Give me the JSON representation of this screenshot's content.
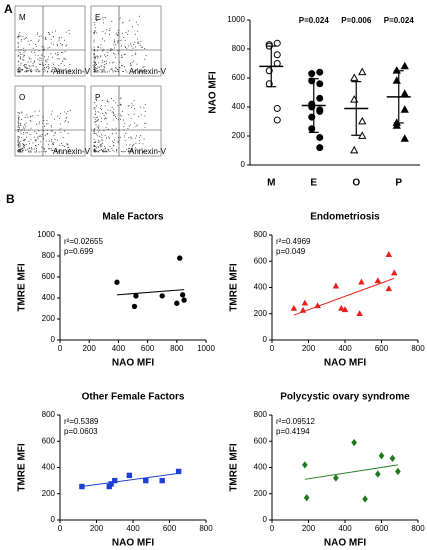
{
  "panel_labels": [
    "A",
    "B"
  ],
  "flow_panels": {
    "labels": [
      "M",
      "E",
      "O",
      "P"
    ],
    "axis_label": "Annexin-V"
  },
  "chart_data": [
    {
      "type": "dot",
      "ylabel": "NAO MFI",
      "categories": [
        "M",
        "E",
        "O",
        "P"
      ],
      "markers": [
        "circle-open",
        "circle",
        "triangle-open",
        "triangle"
      ],
      "groups": [
        [
          840,
          830,
          820,
          760,
          700,
          650,
          560,
          390,
          310
        ],
        [
          640,
          630,
          580,
          560,
          460,
          420,
          400,
          380,
          370,
          330,
          250,
          190,
          120
        ],
        [
          640,
          600,
          450,
          300,
          200,
          100
        ],
        [
          680,
          650,
          580,
          490,
          380,
          290,
          270,
          180
        ]
      ],
      "means": [
        680,
        410,
        390,
        470
      ],
      "sd": [
        140,
        185,
        185,
        180
      ],
      "annotations": [
        {
          "category": "E",
          "text": "P=0.024"
        },
        {
          "category": "O",
          "text": "P=0.006"
        },
        {
          "category": "P",
          "text": "P=0.024"
        }
      ],
      "ylim": [
        0,
        1000
      ],
      "yticks": [
        0,
        200,
        400,
        600,
        800,
        1000
      ]
    },
    {
      "type": "scatter",
      "title": "Male Factors",
      "xlabel": "NAO MFI",
      "ylabel": "TMRE MFI",
      "annotations": [
        "r²=0.02655",
        "p=0.699"
      ],
      "marker": "circle",
      "color": "#000000",
      "x": [
        390,
        510,
        520,
        700,
        800,
        820,
        840,
        850
      ],
      "y": [
        550,
        320,
        420,
        420,
        350,
        780,
        430,
        380
      ],
      "fit": {
        "x": [
          390,
          850
        ],
        "y": [
          430,
          480
        ]
      },
      "xlim": [
        0,
        1000
      ],
      "xticks": [
        0,
        200,
        400,
        600,
        800,
        1000
      ],
      "ylim": [
        0,
        1000
      ],
      "yticks": [
        0,
        200,
        400,
        600,
        800,
        1000
      ]
    },
    {
      "type": "scatter",
      "title": "Endometriosis",
      "xlabel": "NAO MFI",
      "ylabel": "TMRE MFI",
      "annotations": [
        "r²=0.4969",
        "p=0.049"
      ],
      "marker": "triangle",
      "color": "#e8201c",
      "x": [
        120,
        170,
        180,
        250,
        350,
        380,
        400,
        480,
        490,
        580,
        640,
        640,
        670
      ],
      "y": [
        240,
        225,
        280,
        260,
        410,
        240,
        230,
        200,
        440,
        450,
        650,
        390,
        510
      ],
      "fit": {
        "x": [
          120,
          670
        ],
        "y": [
          190,
          470
        ]
      },
      "xlim": [
        0,
        800
      ],
      "xticks": [
        0,
        200,
        400,
        600,
        800
      ],
      "ylim": [
        0,
        800
      ],
      "yticks": [
        0,
        200,
        400,
        600,
        800
      ]
    },
    {
      "type": "scatter",
      "title": "Other Female Factors",
      "xlabel": "NAO MFI",
      "ylabel": "TMRE MFI",
      "annotations": [
        "r²=0.5389",
        "p=0.0603"
      ],
      "marker": "square",
      "color": "#1f3fd6",
      "x": [
        120,
        270,
        280,
        300,
        380,
        470,
        560,
        650
      ],
      "y": [
        255,
        255,
        275,
        300,
        340,
        300,
        300,
        370
      ],
      "fit": {
        "x": [
          120,
          650
        ],
        "y": [
          255,
          355
        ]
      },
      "xlim": [
        0,
        800
      ],
      "xticks": [
        0,
        200,
        400,
        600,
        800
      ],
      "ylim": [
        0,
        800
      ],
      "yticks": [
        0,
        200,
        400,
        600,
        800
      ]
    },
    {
      "type": "scatter",
      "title": "Polycystic ovary syndrome",
      "xlabel": "NAO MFI",
      "ylabel": "TMRE MFI",
      "annotations": [
        "r²=0.09512",
        "p=0.4194"
      ],
      "marker": "diamond",
      "color": "#1f7a1f",
      "x": [
        180,
        190,
        350,
        450,
        510,
        580,
        600,
        660,
        690
      ],
      "y": [
        420,
        170,
        320,
        590,
        160,
        350,
        490,
        470,
        370
      ],
      "fit": {
        "x": [
          180,
          690
        ],
        "y": [
          310,
          420
        ]
      },
      "xlim": [
        0,
        800
      ],
      "xticks": [
        0,
        200,
        400,
        600,
        800
      ],
      "ylim": [
        0,
        800
      ],
      "yticks": [
        0,
        200,
        400,
        600,
        800
      ]
    }
  ]
}
